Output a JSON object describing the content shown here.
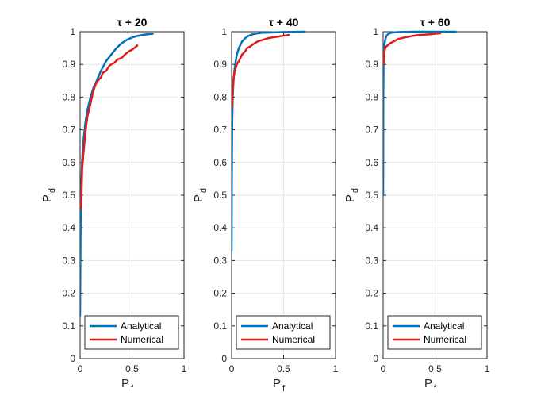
{
  "chart_data": [
    {
      "type": "line",
      "title": "τ + 20",
      "xlabel": "P",
      "xlabel_sub": "f",
      "ylabel": "P",
      "ylabel_sub": "d",
      "xlim": [
        0,
        1
      ],
      "ylim": [
        0,
        1
      ],
      "xticks": [
        "0",
        "0.5",
        "1"
      ],
      "yticks": [
        "0",
        "0.1",
        "0.2",
        "0.3",
        "0.4",
        "0.5",
        "0.6",
        "0.7",
        "0.8",
        "0.9",
        "1"
      ],
      "grid": true,
      "legend_position": "bottom",
      "series": [
        {
          "name": "Analytical",
          "color": "#0072BD",
          "x": [
            0,
            0.005,
            0.01,
            0.02,
            0.03,
            0.04,
            0.05,
            0.07,
            0.1,
            0.13,
            0.16,
            0.2,
            0.25,
            0.3,
            0.35,
            0.4,
            0.45,
            0.5,
            0.55,
            0.6,
            0.65,
            0.7
          ],
          "y": [
            0.13,
            0.4,
            0.52,
            0.61,
            0.66,
            0.69,
            0.72,
            0.76,
            0.8,
            0.83,
            0.85,
            0.88,
            0.91,
            0.93,
            0.95,
            0.965,
            0.975,
            0.982,
            0.987,
            0.99,
            0.992,
            0.994
          ]
        },
        {
          "name": "Numerical",
          "color": "#E21A1A",
          "x": [
            0.01,
            0.015,
            0.02,
            0.03,
            0.05,
            0.07,
            0.1,
            0.12,
            0.15,
            0.17,
            0.2,
            0.22,
            0.25,
            0.28,
            0.3,
            0.33,
            0.36,
            0.4,
            0.43,
            0.47,
            0.5,
            0.53,
            0.55
          ],
          "y": [
            0.46,
            0.52,
            0.58,
            0.62,
            0.69,
            0.74,
            0.78,
            0.81,
            0.84,
            0.85,
            0.86,
            0.875,
            0.88,
            0.895,
            0.9,
            0.905,
            0.915,
            0.92,
            0.93,
            0.94,
            0.945,
            0.952,
            0.958
          ]
        }
      ]
    },
    {
      "type": "line",
      "title": "τ + 40",
      "xlabel": "P",
      "xlabel_sub": "f",
      "ylabel": "P",
      "ylabel_sub": "d",
      "xlim": [
        0,
        1
      ],
      "ylim": [
        0,
        1
      ],
      "xticks": [
        "0",
        "0.5",
        "1"
      ],
      "yticks": [
        "0",
        "0.1",
        "0.2",
        "0.3",
        "0.4",
        "0.5",
        "0.6",
        "0.7",
        "0.8",
        "0.9",
        "1"
      ],
      "grid": true,
      "legend_position": "bottom",
      "series": [
        {
          "name": "Analytical",
          "color": "#0072BD",
          "x": [
            0,
            0.003,
            0.006,
            0.01,
            0.015,
            0.02,
            0.03,
            0.04,
            0.05,
            0.07,
            0.1,
            0.13,
            0.16,
            0.2,
            0.25,
            0.3,
            0.4,
            0.5,
            0.6,
            0.7
          ],
          "y": [
            0.33,
            0.6,
            0.72,
            0.79,
            0.83,
            0.86,
            0.89,
            0.91,
            0.93,
            0.95,
            0.97,
            0.98,
            0.987,
            0.992,
            0.995,
            0.997,
            0.998,
            0.999,
            0.9995,
            1.0
          ]
        },
        {
          "name": "Numerical",
          "color": "#E21A1A",
          "x": [
            0.005,
            0.008,
            0.01,
            0.015,
            0.02,
            0.03,
            0.05,
            0.07,
            0.1,
            0.13,
            0.15,
            0.18,
            0.2,
            0.25,
            0.3,
            0.35,
            0.4,
            0.45,
            0.5,
            0.55
          ],
          "y": [
            0.77,
            0.8,
            0.82,
            0.84,
            0.86,
            0.88,
            0.9,
            0.91,
            0.93,
            0.94,
            0.95,
            0.955,
            0.96,
            0.97,
            0.975,
            0.98,
            0.983,
            0.985,
            0.988,
            0.99
          ]
        }
      ]
    },
    {
      "type": "line",
      "title": "τ + 60",
      "xlabel": "P",
      "xlabel_sub": "f",
      "ylabel": "P",
      "ylabel_sub": "d",
      "xlim": [
        0,
        1
      ],
      "ylim": [
        0,
        1
      ],
      "xticks": [
        "0",
        "0.5",
        "1"
      ],
      "yticks": [
        "0",
        "0.1",
        "0.2",
        "0.3",
        "0.4",
        "0.5",
        "0.6",
        "0.7",
        "0.8",
        "0.9",
        "1"
      ],
      "grid": true,
      "legend_position": "bottom",
      "series": [
        {
          "name": "Analytical",
          "color": "#0072BD",
          "x": [
            0,
            0.002,
            0.004,
            0.006,
            0.01,
            0.015,
            0.02,
            0.03,
            0.04,
            0.05,
            0.07,
            0.1,
            0.15,
            0.2,
            0.3,
            0.4,
            0.5,
            0.6,
            0.7
          ],
          "y": [
            0.5,
            0.8,
            0.88,
            0.92,
            0.95,
            0.965,
            0.975,
            0.985,
            0.99,
            0.993,
            0.996,
            0.998,
            0.999,
            0.9995,
            1.0,
            1.0,
            1.0,
            1.0,
            1.0
          ]
        },
        {
          "name": "Numerical",
          "color": "#E21A1A",
          "x": [
            0.005,
            0.008,
            0.01,
            0.015,
            0.02,
            0.03,
            0.05,
            0.07,
            0.1,
            0.13,
            0.15,
            0.2,
            0.25,
            0.3,
            0.35,
            0.4,
            0.45,
            0.5,
            0.55
          ],
          "y": [
            0.9,
            0.92,
            0.93,
            0.94,
            0.95,
            0.955,
            0.96,
            0.965,
            0.97,
            0.975,
            0.978,
            0.982,
            0.985,
            0.988,
            0.99,
            0.991,
            0.992,
            0.994,
            0.995
          ]
        }
      ]
    }
  ]
}
